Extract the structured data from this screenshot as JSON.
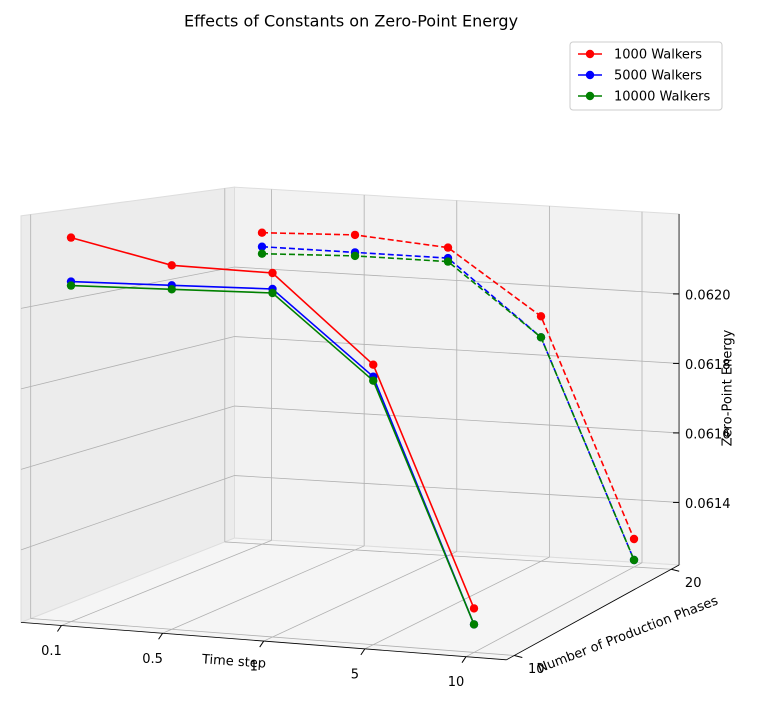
{
  "chart_data": {
    "type": "line3d",
    "title": "Effects of Constants on Zero-Point Energy",
    "xlabel": "Time step",
    "ylabel": "Number of Production Phases",
    "zlabel": "Zero-Point Energy",
    "categories": [
      "0.1",
      "0.5",
      "1",
      "5",
      "10"
    ],
    "yticks": [
      10,
      20
    ],
    "ylim": [
      9.5,
      20.5
    ],
    "zlim": [
      0.06122,
      0.06223
    ],
    "zticks": [
      0.0614,
      0.0616,
      0.0618,
      {
        "value": 0.062,
        "label": "0.0620"
      }
    ],
    "linestyles": [
      "solid",
      "dashed"
    ],
    "grid": true,
    "legend": "upper right",
    "series": [
      {
        "name": "1000 Walkers",
        "color": "#ff0000",
        "values": [
          [
            0.06218,
            0.06213,
            0.06213,
            0.06192,
            0.06133
          ],
          [
            0.06211,
            0.06212,
            0.0621,
            0.06192,
            0.0613
          ]
        ]
      },
      {
        "name": "5000 Walkers",
        "color": "#0000ff",
        "values": [
          [
            0.06207,
            0.06208,
            0.06209,
            0.06189,
            0.06129
          ],
          [
            0.06207,
            0.06207,
            0.06207,
            0.06186,
            0.06124
          ]
        ]
      },
      {
        "name": "10000 Walkers",
        "color": "#008000",
        "values": [
          [
            0.06206,
            0.06207,
            0.06208,
            0.06188,
            0.06129
          ],
          [
            0.06205,
            0.06206,
            0.06206,
            0.06186,
            0.06124
          ]
        ]
      }
    ]
  }
}
